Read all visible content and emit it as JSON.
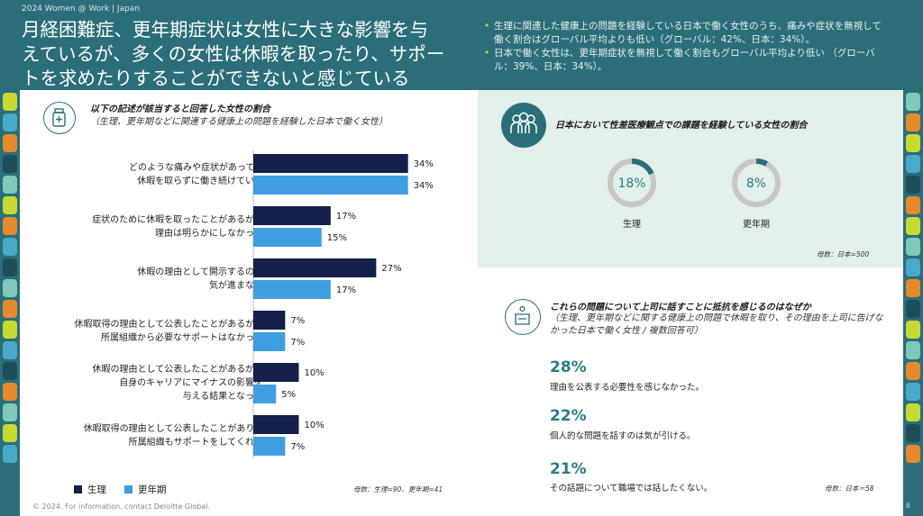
{
  "header": {
    "label": "2024 Women @ Work | Japan",
    "title": "月経困難症、更年期症状は女性に大きな影響を与えているが、多くの女性は休暇を取ったり、サポートを求めたりすることができないと感じている",
    "bullets": [
      "生理に関連した健康上の問題を経験している日本で働く女性のうち、痛みや症状を無視して働く割合はグローバル平均よりも低い（グローバル：42%、日本：34%）。",
      "日本で働く女性は、更年期症状を無視して働く割合もグローバル平均より低い （グローバル：39%、日本：34%）。"
    ]
  },
  "colors": {
    "teal": "#2b6e79",
    "navy": "#13204a",
    "blue": "#3f9ee0",
    "stat_teal": "#2b7c86",
    "donut_track": "#c7c7c7",
    "panel_tint": "#e3efeb"
  },
  "left_panel": {
    "icon": "medicine-bottle-icon",
    "title": "以下の記述が該当すると回答した女性の割合",
    "subtitle": "（生理、更年期などに関連する健康上の問題を経験した日本で働く女性）",
    "note": "母数：生理=90、更年期=41"
  },
  "chart_data": {
    "type": "bar",
    "orientation": "horizontal",
    "categories": [
      [
        "どのような痛みや症状があっても",
        "休暇を取らずに働き続けている"
      ],
      [
        "症状のために休暇を取ったことがあるが、",
        "理由は明らかにしなかった"
      ],
      [
        "休暇の理由として開示するのは",
        "気が進まない"
      ],
      [
        "休暇取得の理由として公表したことがあるが、",
        "所属組織から必要なサポートはなかった"
      ],
      [
        "休暇の理由として公表したことがあるが、",
        "自身のキャリアにマイナスの影響を",
        "与える結果となった"
      ],
      [
        "休暇取得の理由として公表したことがあり、",
        "所属組織もサポートをしてくれた"
      ]
    ],
    "series": [
      {
        "name": "生理",
        "color": "#13204a",
        "values": [
          34,
          17,
          27,
          7,
          10,
          10
        ]
      },
      {
        "name": "更年期",
        "color": "#3f9ee0",
        "values": [
          34,
          15,
          17,
          7,
          5,
          7
        ]
      }
    ],
    "unit": "%",
    "xlim": [
      0,
      40
    ],
    "legend": "bottom-left",
    "grid": false
  },
  "donut_panel": {
    "icon": "people-group-icon",
    "title": "日本において性差医療観点での課題を経験している女性の割合",
    "items": [
      {
        "value": 18,
        "display": "18%",
        "label": "生理"
      },
      {
        "value": 8,
        "display": "8%",
        "label": "更年期"
      }
    ],
    "note": "母数：日本=500"
  },
  "reasons_panel": {
    "icon": "podium-speaker-icon",
    "title": "これらの問題について上司に話すことに抵抗を感じるのはなぜか",
    "subtitle": "（生理、更年期などに関する健康上の問題で休暇を取り、その理由を上司に告げなかった日本で働く女性 / 複数回答可）",
    "stats": [
      {
        "value": "28%",
        "text": "理由を公表する必要性を感じなかった。"
      },
      {
        "value": "22%",
        "text": "個人的な問題を話すのは気が引ける。"
      },
      {
        "value": "21%",
        "text": "その話題について職場では話したくない。"
      }
    ],
    "note": "母数：日本＝58"
  },
  "footer": {
    "text": "© 2024. For information, contact Deloitte Global.",
    "page": "6"
  }
}
